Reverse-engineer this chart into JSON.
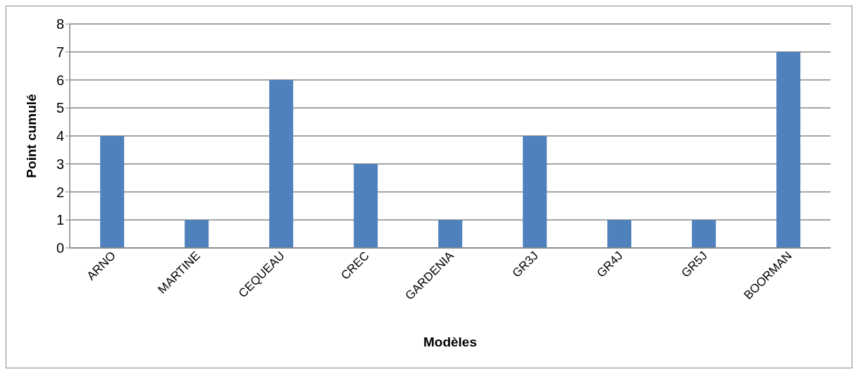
{
  "chart_data": {
    "type": "bar",
    "xlabel": "Modèles",
    "ylabel": "Point cumulé",
    "categories": [
      "ARNO",
      "MARTINE",
      "CEQUEAU",
      "CREC",
      "GARDENIA",
      "GR3J",
      "GR4J",
      "GR5J",
      "BOORMAN"
    ],
    "values": [
      4,
      1,
      6,
      3,
      1,
      4,
      1,
      1,
      7
    ],
    "color": "#4f81bd",
    "ylim": [
      0,
      8
    ],
    "yticks": [
      0,
      1,
      2,
      3,
      4,
      5,
      6,
      7,
      8
    ],
    "grid": "y"
  }
}
